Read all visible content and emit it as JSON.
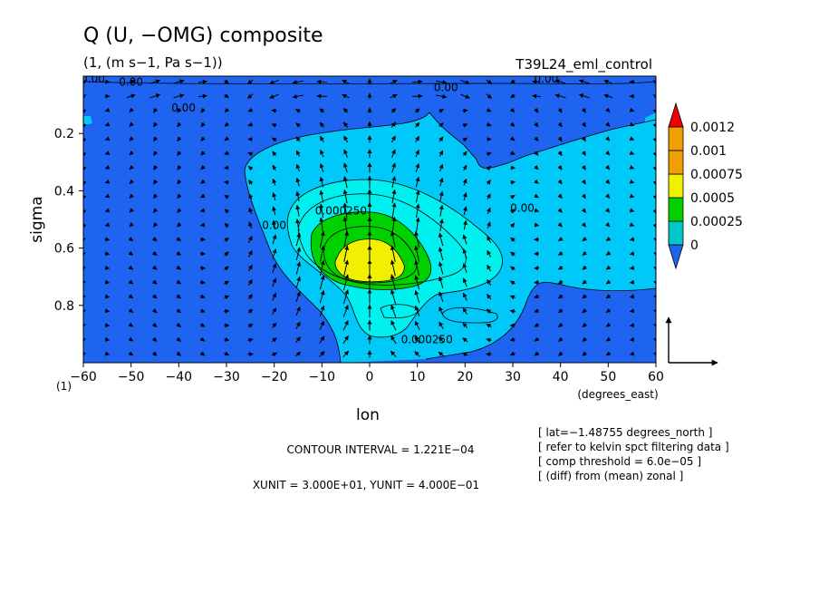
{
  "chart_data": {
    "type": "heatmap",
    "title": "Q (U, −OMG) composite",
    "subtitle": "(1, (m s−1, Pa s−1))",
    "experiment_label": "T39L24_eml_control",
    "xlabel": "lon",
    "xunit_label": "(degrees_east)",
    "ylabel": "sigma",
    "y_corner_label": "(1)",
    "xlim": [
      -60,
      60
    ],
    "ylim": [
      1.0,
      0.0
    ],
    "y_reversed": true,
    "x_ticks": [
      -60,
      -50,
      -40,
      -30,
      -20,
      -10,
      0,
      10,
      20,
      30,
      40,
      50,
      60
    ],
    "x_tick_labels": [
      "−60",
      "−50",
      "−40",
      "−30",
      "−20",
      "−10",
      "0",
      "10",
      "20",
      "30",
      "40",
      "50",
      "60"
    ],
    "y_ticks": [
      0.2,
      0.4,
      0.6,
      0.8
    ],
    "y_tick_labels": [
      "0.2",
      "0.4",
      "0.6",
      "0.8"
    ],
    "colorbar": {
      "levels": [
        0,
        0.00025,
        0.0005,
        0.00075,
        0.001,
        0.0012
      ],
      "labels": [
        "0",
        "0.00025",
        "0.0005",
        "0.00075",
        "0.001",
        "0.0012"
      ],
      "colors": [
        "#1e64f0",
        "#00c8c8",
        "#00d200",
        "#f0f000",
        "#f0a000",
        "#f00000"
      ]
    },
    "fill_colors": {
      "below_zero": "#1e64f0",
      "band_0_00025": "#00c8f8",
      "band_00025_0005": "#00f0f0",
      "band_0005_00075": "#00d200",
      "band_00075_001": "#f0f000"
    },
    "contour_labels": [
      {
        "text": "0.00",
        "lon": -58,
        "sigma": 0.01
      },
      {
        "text": "0.00",
        "lon": -50,
        "sigma": 0.02
      },
      {
        "text": "0.00",
        "lon": 16,
        "sigma": 0.04
      },
      {
        "text": "0.00",
        "lon": 37,
        "sigma": 0.01
      },
      {
        "text": "0.00",
        "lon": -39,
        "sigma": 0.11
      },
      {
        "text": "0.00",
        "lon": -20,
        "sigma": 0.52
      },
      {
        "text": "0.00",
        "lon": 32,
        "sigma": 0.46
      },
      {
        "text": "0.000250",
        "lon": -6,
        "sigma": 0.47
      },
      {
        "text": "0.000250",
        "lon": 12,
        "sigma": 0.92
      }
    ],
    "vector_field": {
      "lons": [
        -60,
        -55,
        -50,
        -45,
        -40,
        -35,
        -30,
        -25,
        -20,
        -15,
        -10,
        -5,
        0,
        5,
        10,
        15,
        20,
        25,
        30,
        35,
        40,
        45,
        50,
        55,
        60
      ],
      "sigmas": [
        0.02,
        0.07,
        0.12,
        0.17,
        0.22,
        0.27,
        0.32,
        0.37,
        0.42,
        0.47,
        0.52,
        0.57,
        0.62,
        0.67,
        0.72,
        0.77,
        0.82,
        0.87,
        0.92,
        0.97
      ],
      "description_center_lon": 0,
      "description_center_sigma": 0.6
    },
    "reference_vector": {
      "u": 30.0,
      "w": 0.4
    }
  },
  "annotations": {
    "contour_interval": "CONTOUR INTERVAL = 1.221E−04",
    "units": "XUNIT = 3.000E+01, YUNIT = 4.000E−01",
    "notes": [
      "[ lat=−1.48755 degrees_north ]",
      "[ refer to kelvin spct filtering data ]",
      "[ comp threshold = 6.0e−05 ]",
      "[ (diff) from (mean) zonal ]"
    ]
  }
}
